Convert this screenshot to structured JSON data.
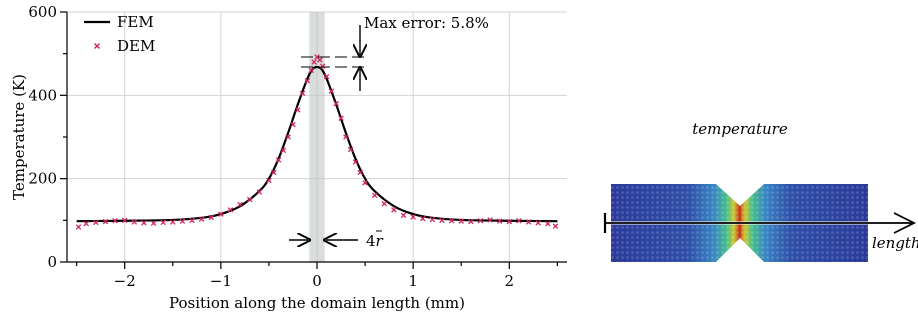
{
  "chart_data": {
    "type": "line",
    "xlabel": "Position along the domain length (mm)",
    "ylabel": "Temperature (K)",
    "xlim": [
      -2.6,
      2.6
    ],
    "ylim": [
      0,
      600
    ],
    "xticks": [
      -2,
      -1,
      0,
      1,
      2
    ],
    "xtick_labels": [
      "−2",
      "−1",
      "0",
      "1",
      "2"
    ],
    "yticks": [
      0,
      200,
      400,
      600
    ],
    "ytick_labels": [
      "0",
      "200",
      "400",
      "600"
    ],
    "grid": true,
    "legend_position": "top-left",
    "series": [
      {
        "name": "FEM",
        "style": "solid-line",
        "color": "#000000",
        "x": [
          -2.5,
          -2.0,
          -1.5,
          -1.2,
          -1.0,
          -0.8,
          -0.6,
          -0.5,
          -0.4,
          -0.3,
          -0.2,
          -0.1,
          -0.05,
          0.0,
          0.05,
          0.1,
          0.2,
          0.3,
          0.4,
          0.5,
          0.6,
          0.8,
          1.0,
          1.2,
          1.5,
          2.0,
          2.5
        ],
        "y": [
          98,
          99,
          101,
          106,
          115,
          134,
          170,
          200,
          248,
          310,
          378,
          440,
          462,
          468,
          462,
          440,
          378,
          310,
          248,
          200,
          170,
          134,
          115,
          106,
          101,
          99,
          98
        ]
      },
      {
        "name": "DEM",
        "style": "x-marker",
        "color": "#d0245e",
        "x": [
          -2.48,
          -2.4,
          -2.3,
          -2.2,
          -2.1,
          -2.0,
          -1.9,
          -1.8,
          -1.7,
          -1.6,
          -1.5,
          -1.4,
          -1.3,
          -1.2,
          -1.1,
          -1.0,
          -0.9,
          -0.8,
          -0.7,
          -0.6,
          -0.5,
          -0.45,
          -0.4,
          -0.35,
          -0.3,
          -0.25,
          -0.2,
          -0.15,
          -0.1,
          -0.06,
          -0.03,
          0.0,
          0.03,
          0.06,
          0.1,
          0.15,
          0.2,
          0.25,
          0.3,
          0.35,
          0.4,
          0.45,
          0.5,
          0.6,
          0.7,
          0.8,
          0.9,
          1.0,
          1.1,
          1.2,
          1.3,
          1.4,
          1.5,
          1.6,
          1.7,
          1.8,
          1.9,
          2.0,
          2.1,
          2.2,
          2.3,
          2.4,
          2.48
        ],
        "y": [
          84,
          92,
          95,
          97,
          99,
          100,
          96,
          94,
          93,
          95,
          96,
          98,
          100,
          103,
          107,
          115,
          125,
          138,
          150,
          168,
          196,
          215,
          245,
          268,
          300,
          330,
          365,
          405,
          435,
          460,
          480,
          492,
          485,
          470,
          445,
          410,
          380,
          345,
          300,
          270,
          240,
          215,
          190,
          160,
          140,
          125,
          112,
          108,
          104,
          102,
          100,
          99,
          98,
          97,
          99,
          101,
          98,
          97,
          99,
          96,
          94,
          92,
          86
        ]
      }
    ],
    "annotations": {
      "max_error": "Max error: 5.8%",
      "width_label": "4",
      "width_label_symbol": "r",
      "shaded_band_x": [
        -0.08,
        0.08
      ],
      "max_error_bracket_y": [
        468,
        492
      ]
    }
  },
  "inset": {
    "title": "temperature",
    "axis_label": "length",
    "colormap": [
      "#2b3a9a",
      "#2f6fbf",
      "#36b3c8",
      "#4cc46a",
      "#c5d23a",
      "#f08a24",
      "#c8281e"
    ]
  }
}
